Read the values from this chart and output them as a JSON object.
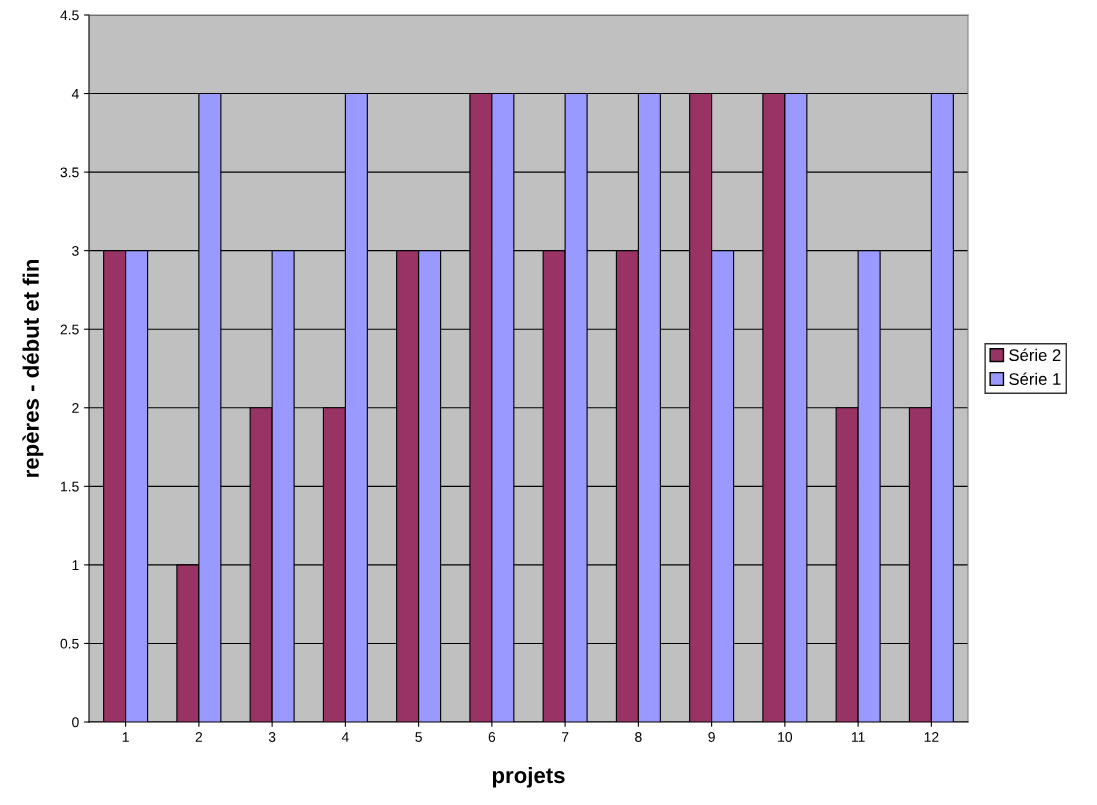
{
  "chart_data": {
    "type": "bar",
    "xlabel": "projets",
    "ylabel": "repères - début et fin",
    "categories": [
      "1",
      "2",
      "3",
      "4",
      "5",
      "6",
      "7",
      "8",
      "9",
      "10",
      "11",
      "12"
    ],
    "series": [
      {
        "name": "Série 2",
        "color": "#993366",
        "values": [
          3,
          1,
          2,
          2,
          3,
          4,
          3,
          3,
          4,
          4,
          2,
          2
        ]
      },
      {
        "name": "Série 1",
        "color": "#9999ff",
        "values": [
          3,
          4,
          3,
          4,
          3,
          4,
          4,
          4,
          3,
          4,
          3,
          4
        ]
      }
    ],
    "ylim": [
      0,
      4.5
    ],
    "yticks": [
      0,
      0.5,
      1,
      1.5,
      2,
      2.5,
      3,
      3.5,
      4,
      4.5
    ],
    "grid": "y",
    "legend": "right"
  }
}
